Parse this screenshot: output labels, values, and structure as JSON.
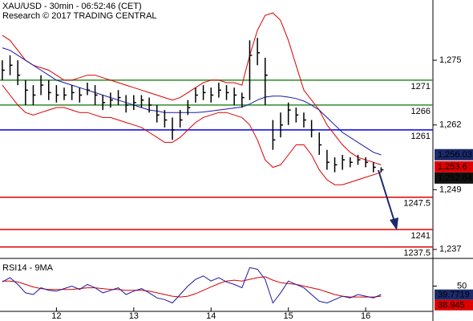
{
  "chart_data": {
    "type": "ohlc",
    "title": "XAU/USD - 30min - 06:52:46 (CET)",
    "subtitle": "Research © 2017 TRADING CENTRAL",
    "xlim": [
      11.27,
      16.87
    ],
    "xticks": [
      12,
      13,
      14,
      15,
      16
    ],
    "ylim": [
      1235.2,
      1287.1
    ],
    "yticks": [
      {
        "value": 1275,
        "label": "1,275"
      },
      {
        "value": 1262,
        "label": "1,262"
      },
      {
        "value": 1249,
        "label": "1,249"
      },
      {
        "value": 1237,
        "label": "1,237"
      }
    ],
    "x": [
      11.3,
      11.4,
      11.5,
      11.6,
      11.7,
      11.8,
      11.9,
      12.0,
      12.1,
      12.2,
      12.3,
      12.4,
      12.5,
      12.6,
      12.7,
      12.8,
      12.9,
      13.0,
      13.1,
      13.2,
      13.3,
      13.4,
      13.5,
      13.6,
      13.7,
      13.8,
      13.9,
      14.0,
      14.1,
      14.2,
      14.3,
      14.4,
      14.5,
      14.6,
      14.7,
      14.8,
      14.9,
      15.0,
      15.1,
      15.2,
      15.3,
      15.4,
      15.5,
      15.6,
      15.7,
      15.8,
      15.9,
      16.0,
      16.1,
      16.2
    ],
    "color": "#000000",
    "high": [
      1275,
      1276,
      1275,
      1271,
      1270,
      1272,
      1271,
      1270,
      1269.5,
      1270,
      1269.5,
      1270.5,
      1270,
      1268,
      1268.5,
      1269,
      1268,
      1268,
      1268,
      1267.5,
      1266,
      1265,
      1263.5,
      1265,
      1267,
      1269.5,
      1270,
      1269.5,
      1270.5,
      1270,
      1269.5,
      1268.5,
      1279,
      1279.5,
      1275.5,
      1263,
      1264.5,
      1266.5,
      1265.5,
      1264.5,
      1263,
      1260.5,
      1257,
      1255.5,
      1256,
      1255.5,
      1256,
      1255.5,
      1254.5,
      1253.5
    ],
    "low": [
      1271,
      1272,
      1270,
      1266,
      1266,
      1268,
      1267,
      1266.5,
      1267,
      1267,
      1266.5,
      1268,
      1266,
      1265,
      1265.5,
      1266,
      1264.5,
      1265,
      1265.5,
      1264.5,
      1262.5,
      1261.5,
      1259,
      1261.5,
      1264,
      1266.5,
      1267,
      1266.5,
      1267.5,
      1267,
      1266,
      1265.5,
      1267,
      1274,
      1266,
      1257,
      1259.5,
      1262,
      1262.5,
      1261.5,
      1259.5,
      1256,
      1253,
      1252.5,
      1253,
      1253.5,
      1254,
      1253.5,
      1252.5,
      1252.5
    ],
    "close": [
      1273,
      1274,
      1272,
      1269,
      1268,
      1270,
      1268.5,
      1268,
      1268,
      1268.5,
      1268,
      1269,
      1268,
      1266.5,
      1267,
      1267.5,
      1266,
      1266.5,
      1267,
      1266,
      1264,
      1263,
      1261,
      1263,
      1265.5,
      1268,
      1268.5,
      1268,
      1269,
      1268.5,
      1268,
      1267.5,
      1276,
      1276.5,
      1272,
      1259,
      1262,
      1265,
      1264,
      1263,
      1261,
      1258,
      1254.5,
      1254,
      1255,
      1254.5,
      1255,
      1254.5,
      1253.5,
      1253
    ],
    "upper_band": {
      "color": "#dd0000",
      "values": [
        1280,
        1279,
        1277,
        1275,
        1274,
        1273.5,
        1273,
        1272,
        1271,
        1271,
        1271.5,
        1272,
        1272,
        1271.5,
        1271,
        1270.5,
        1270,
        1269.5,
        1269,
        1268.5,
        1268,
        1267.5,
        1267,
        1267.5,
        1268.5,
        1269.5,
        1270.5,
        1271,
        1271,
        1270.5,
        1270.5,
        1270,
        1276,
        1281,
        1284,
        1284.5,
        1283,
        1279,
        1274,
        1269,
        1267,
        1265,
        1262,
        1260,
        1258,
        1256.5,
        1255.5,
        1255,
        1254.5,
        1254
      ]
    },
    "lower_band": {
      "color": "#dd0000",
      "values": [
        1270,
        1268,
        1266,
        1264.5,
        1264,
        1264.5,
        1265,
        1265.5,
        1265.5,
        1265,
        1264.5,
        1264.5,
        1264,
        1263.5,
        1263.5,
        1263,
        1262.5,
        1262,
        1261.5,
        1260.5,
        1259.5,
        1258.5,
        1258.5,
        1259.5,
        1261,
        1262.5,
        1263.5,
        1264,
        1264.5,
        1264.5,
        1264,
        1263.5,
        1262,
        1259,
        1255,
        1253.5,
        1254,
        1256,
        1258,
        1258,
        1256,
        1253,
        1251,
        1250,
        1250,
        1250.5,
        1251,
        1251.5,
        1252,
        1252.5
      ]
    },
    "moving_average": {
      "color": "#1a1aa0",
      "values": [
        1277.5,
        1277,
        1276,
        1275,
        1274,
        1273,
        1272,
        1271,
        1270.5,
        1270,
        1269.5,
        1269,
        1268.5,
        1268,
        1267.5,
        1267,
        1266.5,
        1266,
        1265.5,
        1265,
        1264.8,
        1264.5,
        1264.5,
        1264.5,
        1264.5,
        1264.5,
        1264.6,
        1264.8,
        1265,
        1265.2,
        1265.4,
        1265.6,
        1266.2,
        1267,
        1267.6,
        1267.8,
        1267.8,
        1267.6,
        1267.3,
        1266.8,
        1266,
        1265,
        1263.5,
        1262,
        1260.5,
        1259.5,
        1258.5,
        1257.5,
        1256.5,
        1256
      ]
    },
    "levels": [
      {
        "value": 1271,
        "color": "#2e8b2e"
      },
      {
        "value": 1266,
        "color": "#2e8b2e"
      },
      {
        "value": 1261,
        "color": "#0000ee"
      },
      {
        "value": 1247.5,
        "color": "#e00000"
      },
      {
        "value": 1241,
        "color": "#e00000"
      },
      {
        "value": 1237.5,
        "color": "#e00000"
      }
    ],
    "price_tags": [
      {
        "value": 1256.03,
        "label": "1,256.03",
        "color": "#1b2a6b"
      },
      {
        "value": 1253.6,
        "label": "1,253.6",
        "color": "#e00000"
      },
      {
        "value": 1252.64,
        "label": "1,252.64",
        "color": "#111111"
      }
    ],
    "indicator": {
      "title": "RSI14 - 9MA",
      "ylim": [
        20,
        80
      ],
      "yticks": [
        50
      ],
      "rsi": {
        "color": "#1a1aa0",
        "values": [
          55,
          60,
          52,
          42,
          40,
          48,
          45,
          44,
          47,
          50,
          46,
          52,
          48,
          42,
          45,
          48,
          40,
          44,
          47,
          42,
          36,
          34,
          30,
          40,
          50,
          58,
          62,
          56,
          60,
          55,
          52,
          48,
          72,
          70,
          58,
          30,
          42,
          56,
          52,
          48,
          40,
          32,
          30,
          34,
          38,
          36,
          40,
          38,
          36,
          40
        ]
      },
      "signal": {
        "color": "#dd0000",
        "values": [
          56,
          56,
          55,
          52,
          49,
          47,
          46,
          46,
          46,
          46,
          47,
          48,
          48,
          47,
          46,
          46,
          45,
          45,
          45,
          44,
          42,
          40,
          38,
          37,
          38,
          41,
          45,
          49,
          53,
          56,
          57,
          56,
          58,
          60,
          61,
          57,
          54,
          53,
          52,
          50,
          48,
          46,
          43,
          40,
          38,
          37,
          37,
          37,
          37,
          38
        ]
      },
      "tags": [
        {
          "value": 39.7719,
          "color": "#1b2a6b"
        },
        {
          "value": 38.945,
          "color": "#e00000"
        }
      ]
    }
  }
}
